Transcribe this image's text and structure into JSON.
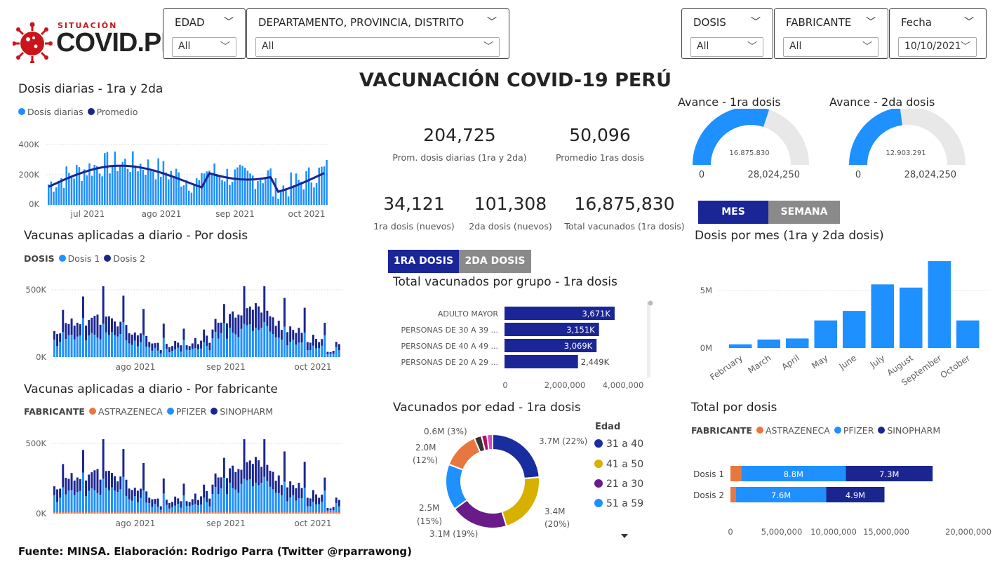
{
  "logo": {
    "top": "SITUACIÓN",
    "main": "COVID.PE"
  },
  "slicers": {
    "edad": {
      "title": "EDAD",
      "value": "All"
    },
    "depto": {
      "title": "DEPARTAMENTO, PROVINCIA, DISTRITO",
      "value": "All"
    },
    "dosis": {
      "title": "DOSIS",
      "value": "All"
    },
    "fabricante": {
      "title": "FABRICANTE",
      "value": "All"
    },
    "fecha": {
      "title": "Fecha",
      "value": "10/10/2021"
    }
  },
  "main_title": "VACUNACIÓN COVID-19 PERÚ",
  "kpis": [
    {
      "value": "204,725",
      "label": "Prom. dosis diarias (1ra y 2da)"
    },
    {
      "value": "50,096",
      "label": "Promedio 1ras dosis"
    },
    {
      "value": "34,121",
      "label": "1ra dosis (nuevos)"
    },
    {
      "value": "101,308",
      "label": "2da dosis (nuevos)"
    },
    {
      "value": "16,875,830",
      "label": "Total vacunados (1ra dosis)"
    }
  ],
  "gauges": [
    {
      "title": "Avance - 1ra dosis",
      "value": "16.875.830",
      "min": "0",
      "max": "28,024,250",
      "fraction": 0.602
    },
    {
      "title": "Avance - 2da dosis",
      "value": "12.903.291",
      "min": "0",
      "max": "28,024,250",
      "fraction": 0.46
    }
  ],
  "buttons": {
    "mes": "MES",
    "semana": "SEMANA",
    "dosis1": "1RA DOSIS",
    "dosis2": "2DA DOSIS"
  },
  "charts": {
    "daily": {
      "title": "Dosis diarias - 1ra y 2da",
      "legend": [
        "Dosis diarias",
        "Promedio"
      ],
      "yticks": [
        "400K",
        "200K",
        "0K"
      ],
      "xticks": [
        "jul 2021",
        "ago 2021",
        "sep 2021",
        "oct 2021"
      ]
    },
    "by_dose": {
      "title": "Vacunas aplicadas a diario - Por dosis",
      "legend_title": "DOSIS",
      "legend": [
        "Dosis 1",
        "Dosis 2"
      ],
      "yticks": [
        "500K",
        "0K"
      ],
      "xticks": [
        "ago 2021",
        "sep 2021",
        "oct 2021"
      ]
    },
    "by_maker": {
      "title": "Vacunas aplicadas a diario - Por fabricante",
      "legend_title": "FABRICANTE",
      "legend": [
        "ASTRAZENECA",
        "PFIZER",
        "SINOPHARM"
      ],
      "yticks": [
        "500K",
        "0K"
      ],
      "xticks": [
        "ago 2021",
        "sep 2021",
        "oct 2021"
      ]
    },
    "groups": {
      "title": "Total vacunados por grupo - 1ra dosis",
      "xticks": [
        "0",
        "2,000,000",
        "4,000,000"
      ]
    },
    "age": {
      "title": "Vacunados por edad - 1ra dosis",
      "legend_title": "Edad",
      "legend": [
        "31 a 40",
        "41 a 50",
        "21 a 30",
        "51 a 59"
      ],
      "labels": [
        "3.7M (22%)",
        "3.4M",
        "(20%)",
        "3.1M (19%)",
        "2.5M",
        "(15%)",
        "2.0M",
        "(12%)",
        "0.6M (3%)"
      ]
    },
    "month": {
      "title": "Dosis por mes (1ra y 2da dosis)",
      "yticks": [
        "5M",
        "0M"
      ]
    },
    "total": {
      "title": "Total por dosis",
      "legend_title": "FABRICANTE",
      "legend": [
        "ASTRAZENECA",
        "PFIZER",
        "SINOPHARM"
      ],
      "xticks": [
        "0",
        "5,000,000",
        "10,000,000",
        "15,000,000",
        "20,000,000"
      ]
    }
  },
  "chart_data": [
    {
      "type": "bar",
      "title": "Total vacunados por grupo - 1ra dosis",
      "categories": [
        "ADULTO MAYOR",
        "PERSONAS DE 30 A 39 ...",
        "PERSONAS DE 40 A 49 ...",
        "PERSONAS DE 20 A 29 ..."
      ],
      "values": [
        3671,
        3151,
        3069,
        2449
      ],
      "labels": [
        "3,671K",
        "3,151K",
        "3,069K",
        "2,449K"
      ],
      "xlim": [
        0,
        4500000
      ]
    },
    {
      "type": "bar",
      "title": "Dosis por mes (1ra y 2da dosis)",
      "categories": [
        "February",
        "March",
        "April",
        "May",
        "June",
        "July",
        "August",
        "September",
        "October"
      ],
      "values": [
        0.35,
        0.8,
        0.9,
        2.6,
        3.5,
        6.0,
        5.7,
        8.2,
        2.6
      ],
      "ylim": [
        0,
        9
      ]
    },
    {
      "type": "bar",
      "title": "Total por dosis",
      "categories": [
        "Dosis 1",
        "Dosis 2"
      ],
      "series": [
        {
          "name": "ASTRAZENECA",
          "values": [
            0.9,
            0.45
          ]
        },
        {
          "name": "PFIZER",
          "values": [
            8.8,
            7.6
          ]
        },
        {
          "name": "SINOPHARM",
          "values": [
            7.3,
            4.9
          ]
        }
      ],
      "labels": [
        [
          "",
          "8.8M",
          "7.3M"
        ],
        [
          "",
          "7.6M",
          "4.9M"
        ]
      ],
      "xlim": [
        0,
        20
      ]
    },
    {
      "type": "pie",
      "title": "Vacunados por edad - 1ra dosis",
      "values": [
        3.7,
        3.4,
        3.1,
        2.5,
        2.0,
        0.4,
        0.3,
        0.3
      ],
      "colors": [
        "#1a2d9e",
        "#d8b000",
        "#6a1b8a",
        "#1e90ff",
        "#e8773f",
        "#333333",
        "#b01060",
        "#d946c8"
      ]
    }
  ],
  "colors": {
    "light": "#1e90ff",
    "dark": "#1a2590",
    "orange": "#e8773f",
    "button_dark": "#1a2596",
    "button_gray": "#8a8a8a"
  },
  "footer": "Fuente: MINSA. Elaboración: Rodrigo Parra (Twitter @rparrawong)"
}
